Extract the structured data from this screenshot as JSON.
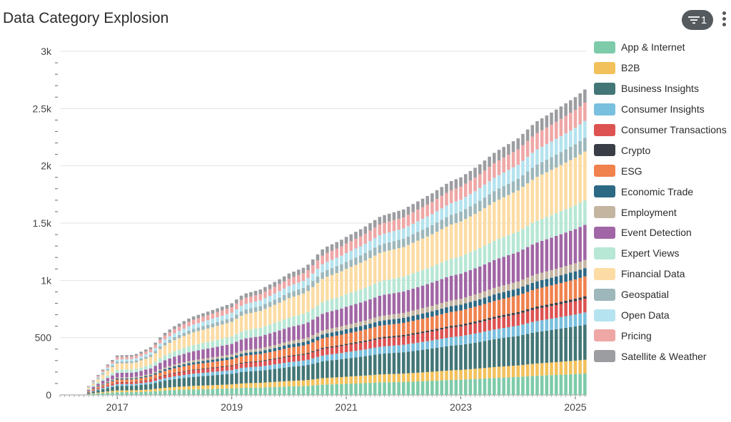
{
  "header": {
    "title": "Data Category Explosion",
    "filter_count": "1"
  },
  "chart_data": {
    "type": "bar",
    "stacked": true,
    "title": "Data Category Explosion",
    "xlabel": "",
    "ylabel": "",
    "ylim": [
      0,
      3000
    ],
    "y_ticks": [
      {
        "value": 0,
        "label": "0"
      },
      {
        "value": 500,
        "label": "500"
      },
      {
        "value": 1000,
        "label": "1k"
      },
      {
        "value": 1500,
        "label": "1.5k"
      },
      {
        "value": 2000,
        "label": "2k"
      },
      {
        "value": 2500,
        "label": "2.5k"
      },
      {
        "value": 3000,
        "label": "3k"
      }
    ],
    "x_range": [
      2016.0,
      2025.2
    ],
    "x_ticks": [
      {
        "value": 2017,
        "label": "2017"
      },
      {
        "value": 2019,
        "label": "2019"
      },
      {
        "value": 2021,
        "label": "2021"
      },
      {
        "value": 2023,
        "label": "2023"
      },
      {
        "value": 2025,
        "label": "2025"
      }
    ],
    "legend_position": "right",
    "series": [
      {
        "name": "App & Internet",
        "color": "#7ecba9",
        "share": 0.07
      },
      {
        "name": "B2B",
        "color": "#f2c15b",
        "share": 0.045
      },
      {
        "name": "Business Insights",
        "color": "#437676",
        "share": 0.115
      },
      {
        "name": "Consumer Insights",
        "color": "#79bfde",
        "share": 0.04
      },
      {
        "name": "Consumer Transactions",
        "color": "#dd5352",
        "share": 0.045
      },
      {
        "name": "Crypto",
        "color": "#393e46",
        "share": 0.008
      },
      {
        "name": "ESG",
        "color": "#f0824e",
        "share": 0.065
      },
      {
        "name": "Economic Trade",
        "color": "#2c6985",
        "share": 0.027
      },
      {
        "name": "Employment",
        "color": "#c4b5a1",
        "share": 0.027
      },
      {
        "name": "Event Detection",
        "color": "#a166a5",
        "share": 0.115
      },
      {
        "name": "Expert Views",
        "color": "#b7e7d5",
        "share": 0.08
      },
      {
        "name": "Financial Data",
        "color": "#fcdca4",
        "share": 0.16
      },
      {
        "name": "Geospatial",
        "color": "#9db7bb",
        "share": 0.045
      },
      {
        "name": "Open Data",
        "color": "#b5e3ef",
        "share": 0.055
      },
      {
        "name": "Pricing",
        "color": "#efa7a6",
        "share": 0.06
      },
      {
        "name": "Satellite & Weather",
        "color": "#9c9da1",
        "share": 0.043
      }
    ],
    "total_series": {
      "dates": [
        2016.5,
        2016.8,
        2017.0,
        2017.3,
        2017.6,
        2017.8,
        2018.0,
        2018.3,
        2018.6,
        2019.0,
        2019.2,
        2019.5,
        2019.8,
        2020.0,
        2020.3,
        2020.6,
        2020.9,
        2021.0,
        2021.3,
        2021.6,
        2022.0,
        2022.5,
        2022.8,
        2023.0,
        2023.3,
        2023.6,
        2024.0,
        2024.3,
        2024.6,
        2025.0,
        2025.2
      ],
      "totals": [
        80,
        250,
        345,
        350,
        420,
        530,
        600,
        680,
        730,
        800,
        880,
        920,
        1000,
        1060,
        1120,
        1280,
        1350,
        1380,
        1460,
        1560,
        1620,
        1760,
        1860,
        1900,
        2000,
        2120,
        2240,
        2380,
        2470,
        2600,
        2680
      ]
    }
  }
}
